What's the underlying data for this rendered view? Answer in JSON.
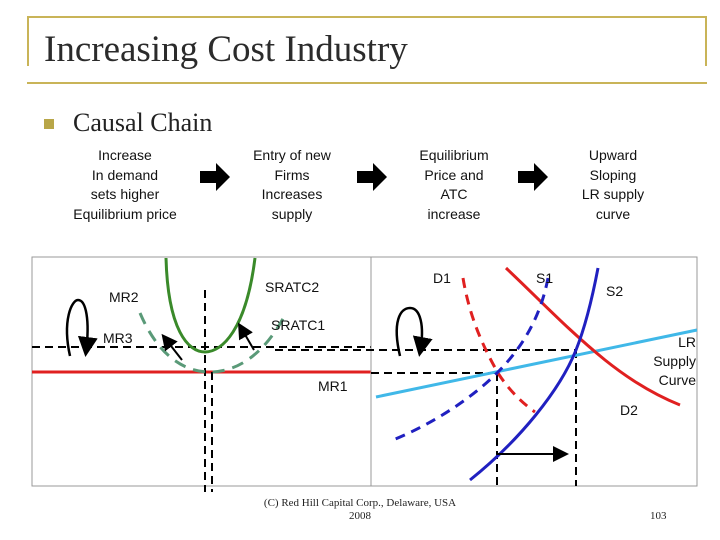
{
  "slide": {
    "title": "Increasing Cost Industry",
    "bullet": "Causal Chain",
    "chain": [
      {
        "lines": [
          "Increase",
          "In demand",
          "sets higher",
          "Equilibrium price"
        ]
      },
      {
        "lines": [
          "Entry of new",
          "Firms",
          "Increases",
          "supply"
        ]
      },
      {
        "lines": [
          "Equilibrium",
          "Price and",
          "ATC",
          "increase"
        ]
      },
      {
        "lines": [
          "Upward",
          "Sloping",
          "LR supply",
          "curve"
        ]
      }
    ],
    "footer": [
      "(C) Red Hill Capital Corp., Delaware, USA",
      "2008"
    ],
    "page_number": "103"
  },
  "labels": {
    "mr2": "MR2",
    "mr3": "MR3",
    "mr1": "MR1",
    "sratc2": "SRATC2",
    "sratc1": "SRATC1",
    "d1": "D1",
    "s1": "S1",
    "s2": "S2",
    "d2": "D2",
    "lr_supply": [
      "LR",
      "Supply",
      "Curve"
    ]
  },
  "colors": {
    "accent": "#c9b458",
    "red_line": "#e02020",
    "green_curve": "#3a8a2a",
    "dashed_green": "#5a9a78",
    "blue_demand": "#2020c0",
    "light_blue": "#40b8e8"
  }
}
